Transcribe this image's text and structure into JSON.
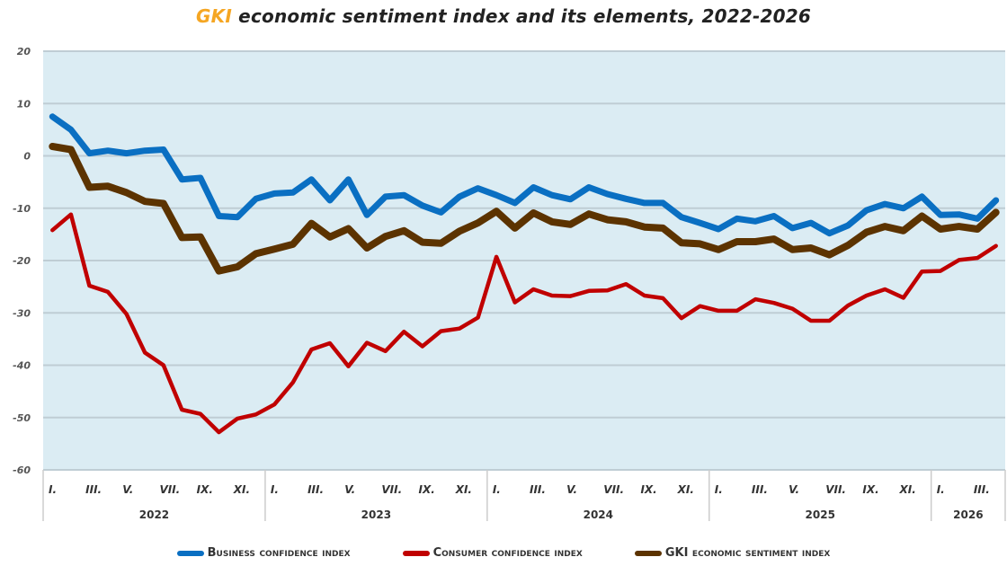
{
  "chart_data": {
    "type": "line",
    "title_brand": "GKI",
    "title_rest": " economic sentiment index and its elements, 2022-2026",
    "xlabel": "",
    "ylabel": "",
    "ylim": [
      -60,
      20
    ],
    "yticks": [
      20,
      10,
      0,
      -10,
      -20,
      -30,
      -40,
      -50,
      -60
    ],
    "grid": true,
    "plot_background": "#dbecf3",
    "legend_position": "bottom",
    "month_labels": [
      "I.",
      "",
      "III.",
      "",
      "V.",
      "",
      "VII.",
      "",
      "IX.",
      "",
      "XI.",
      ""
    ],
    "years": [
      {
        "label": "2022",
        "months": 12
      },
      {
        "label": "2023",
        "months": 12
      },
      {
        "label": "2024",
        "months": 12
      },
      {
        "label": "2025",
        "months": 12
      },
      {
        "label": "2026",
        "months": 4
      }
    ],
    "series": [
      {
        "name": "Business confidence index",
        "color": "#0a6fc2",
        "values": [
          7.5,
          5,
          0.5,
          1,
          0.5,
          1,
          1.2,
          -4.5,
          -4.2,
          -11.5,
          -11.7,
          -8.2,
          -7.2,
          -7,
          -4.5,
          -8.5,
          -4.5,
          -11.3,
          -7.8,
          -7.5,
          -9.5,
          -10.8,
          -7.8,
          -6.2,
          -7.5,
          -9,
          -6,
          -7.5,
          -8.3,
          -6,
          -7.3,
          -8.2,
          -9,
          -9,
          -11.7,
          -12.8,
          -14,
          -12,
          -12.5,
          -11.5,
          -13.8,
          -12.8,
          -14.8,
          -13.3,
          -10.4,
          -9.2,
          -10,
          -7.8,
          -11.3,
          -11.2,
          -12,
          -8.5
        ]
      },
      {
        "name": "Consumer confidence index",
        "color": "#c00000",
        "values": [
          -14.2,
          -11.2,
          -24.8,
          -26,
          -30.2,
          -37.6,
          -40,
          -48.5,
          -49.3,
          -52.8,
          -50.2,
          -49.4,
          -47.5,
          -43.3,
          -37,
          -35.8,
          -40.2,
          -35.7,
          -37.3,
          -33.6,
          -36.4,
          -33.5,
          -33,
          -30.9,
          -19.3,
          -28,
          -25.5,
          -26.7,
          -26.8,
          -25.8,
          -25.7,
          -24.5,
          -26.7,
          -27.2,
          -31,
          -28.7,
          -29.6,
          -29.6,
          -27.4,
          -28.1,
          -29.2,
          -31.5,
          -31.5,
          -28.6,
          -26.7,
          -25.5,
          -27.1,
          -22.1,
          -22,
          -19.9,
          -19.5,
          -17.2
        ]
      },
      {
        "name": "GKI economic sentiment index",
        "color": "#5c3300",
        "values": [
          1.8,
          1.2,
          -6,
          -5.8,
          -7,
          -8.7,
          -9.1,
          -15.6,
          -15.5,
          -22,
          -21.2,
          -18.7,
          -17.8,
          -16.9,
          -12.9,
          -15.5,
          -13.9,
          -17.6,
          -15.4,
          -14.3,
          -16.5,
          -16.7,
          -14.4,
          -12.8,
          -10.6,
          -13.8,
          -10.9,
          -12.6,
          -13.1,
          -11.1,
          -12.2,
          -12.6,
          -13.6,
          -13.8,
          -16.6,
          -16.8,
          -17.9,
          -16.4,
          -16.4,
          -15.9,
          -17.9,
          -17.6,
          -18.9,
          -17.1,
          -14.6,
          -13.5,
          -14.3,
          -11.5,
          -14,
          -13.5,
          -14,
          -10.8
        ]
      }
    ]
  }
}
